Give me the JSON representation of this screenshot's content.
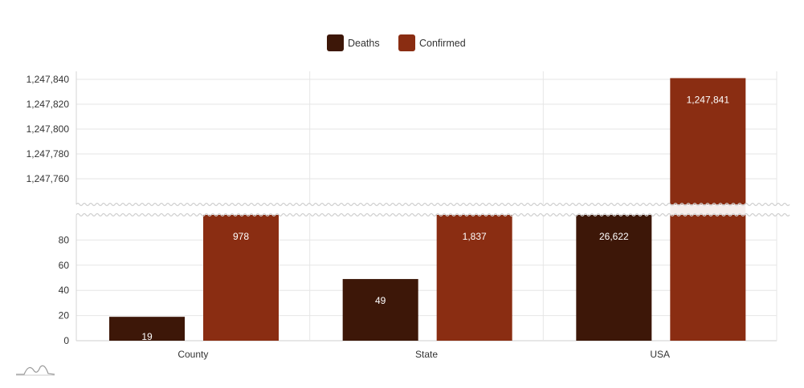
{
  "chart_data": {
    "type": "bar",
    "categories": [
      "County",
      "State",
      "USA"
    ],
    "series": [
      {
        "name": "Deaths",
        "color": "#3d1708",
        "values": [
          19,
          49,
          26622
        ]
      },
      {
        "name": "Confirmed",
        "color": "#8a2d12",
        "values": [
          978,
          1837,
          1247841
        ]
      }
    ],
    "y_axis_break": {
      "lower_range": [
        0,
        100
      ],
      "upper_range": [
        1247740,
        1247840
      ]
    },
    "y_ticks_lower": [
      "0",
      "20",
      "40",
      "60",
      "80"
    ],
    "y_ticks_upper": [
      "1,247,760",
      "1,247,780",
      "1,247,800",
      "1,247,820",
      "1,247,840"
    ],
    "data_labels": [
      [
        "19",
        "49",
        "26,622"
      ],
      [
        "978",
        "1,837",
        "1,247,841"
      ]
    ],
    "grid": true,
    "legend_position": "top-center",
    "title": "",
    "xlabel": "",
    "ylabel": ""
  }
}
